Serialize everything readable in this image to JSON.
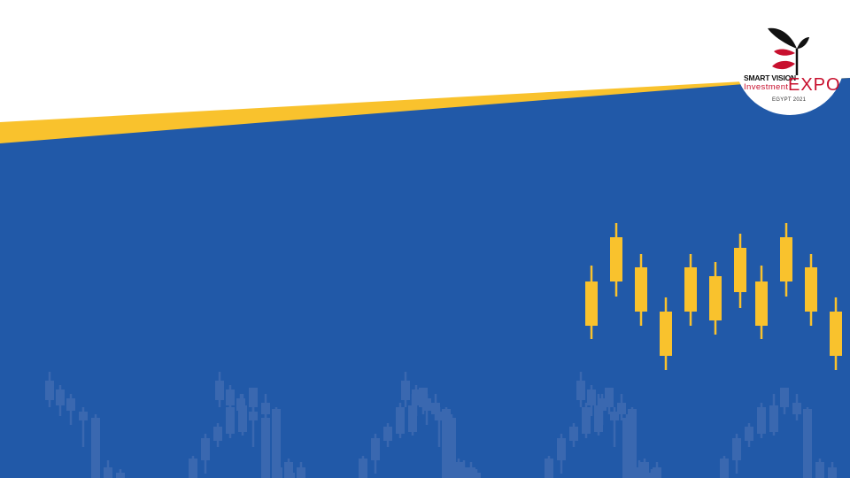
{
  "slide": {
    "background_color": "#2159a8",
    "accent_color": "#f9c22d",
    "faded_pattern_color": "#3a68b0"
  },
  "logo": {
    "line1": "SMART VISION",
    "line2": "Investment",
    "word": "EXPO",
    "line3": "EGYPT 2021",
    "icon": "sprouting-plant-icon",
    "colors": {
      "red": "#c8102e",
      "black": "#111111"
    }
  }
}
